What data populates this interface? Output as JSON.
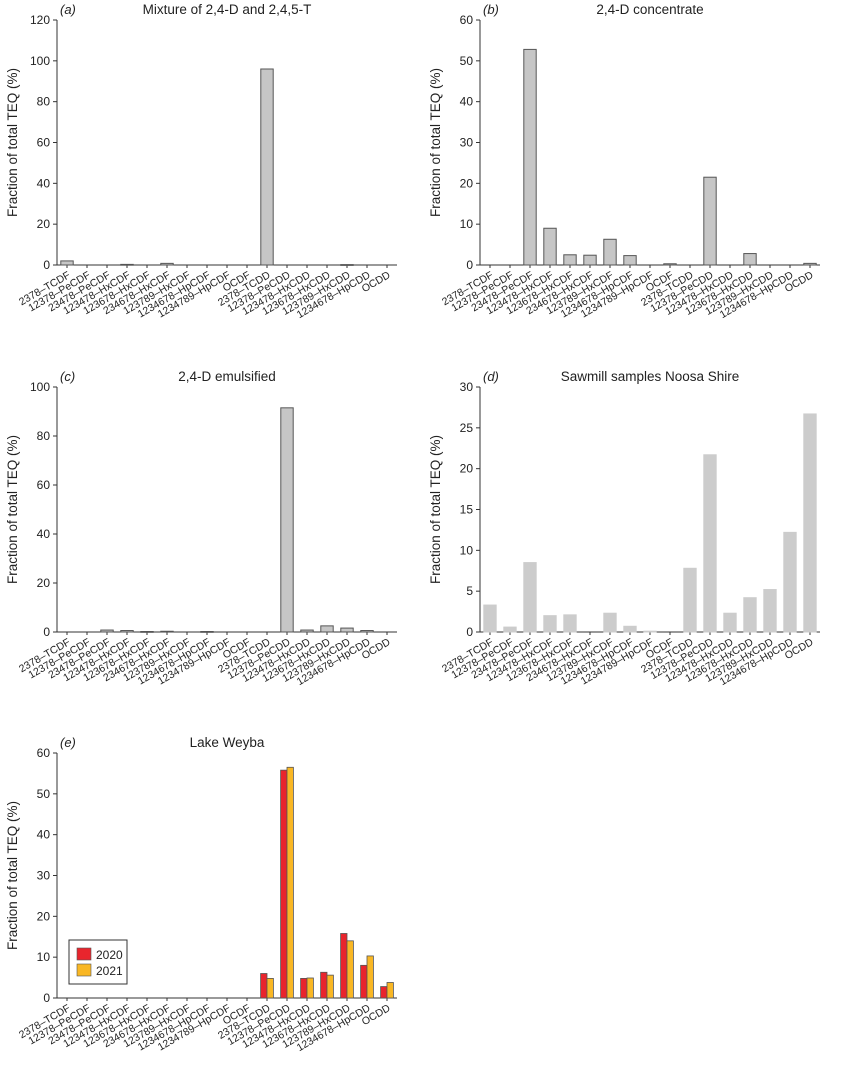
{
  "chart_data": [
    {
      "panel": "(a)",
      "type": "bar",
      "title": "Mixture of 2,4-D and 2,4,5-T",
      "ylabel": "Fraction of total TEQ (%)",
      "ylim": [
        0,
        120
      ],
      "yticks": [
        "0",
        "20",
        "40",
        "60",
        "80",
        "100",
        "120"
      ],
      "categories": [
        "2378–TCDF",
        "12378–PeCDF",
        "23478–PeCDF",
        "123478–HxCDF",
        "123678–HxCDF",
        "234678–HxCDF",
        "123789–HxCDF",
        "1234678–HpCDF",
        "1234789–HpCDF",
        "OCDF",
        "2378–TCDD",
        "12378–PeCDD",
        "123478–HxCDD",
        "123678–HxCDD",
        "123789–HxCDD",
        "1234678–HpCDD",
        "OCDD"
      ],
      "values": [
        2.0,
        0,
        0,
        0.3,
        0,
        0.8,
        0,
        0,
        0,
        0,
        96.0,
        0,
        0,
        0,
        0.2,
        0,
        0
      ],
      "color": "#c6c6c6",
      "edge": "#555555"
    },
    {
      "panel": "(b)",
      "type": "bar",
      "title": "2,4-D concentrate",
      "ylabel": "Fraction of total TEQ (%)",
      "ylim": [
        0,
        60
      ],
      "yticks": [
        "0",
        "10",
        "20",
        "30",
        "40",
        "50",
        "60"
      ],
      "categories": [
        "2378–TCDF",
        "12378–PeCDF",
        "23478–PeCDF",
        "123478–HxCDF",
        "123678–HxCDF",
        "234678–HxCDF",
        "123789–HxCDF",
        "1234678–HpCDF",
        "1234789–HpCDF",
        "OCDF",
        "2378–TCDD",
        "12378–PeCDD",
        "123478–HxCDD",
        "123678–HxCDD",
        "123789–HxCDD",
        "1234678–HpCDD",
        "OCDD"
      ],
      "values": [
        0,
        0,
        52.8,
        9.0,
        2.5,
        2.4,
        6.3,
        2.3,
        0,
        0.3,
        0,
        21.5,
        0,
        2.8,
        0,
        0,
        0.4
      ],
      "color": "#c6c6c6",
      "edge": "#555555"
    },
    {
      "panel": "(c)",
      "type": "bar",
      "title": "2,4-D emulsified",
      "ylabel": "Fraction of total TEQ (%)",
      "ylim": [
        0,
        100
      ],
      "yticks": [
        "0",
        "20",
        "40",
        "60",
        "80",
        "100"
      ],
      "categories": [
        "2378–TCDF",
        "12378–PeCDF",
        "23478–PeCDF",
        "123478–HxCDF",
        "123678–HxCDF",
        "234678–HxCDF",
        "123789–HxCDF",
        "1234678–HpCDF",
        "1234789–HpCDF",
        "OCDF",
        "2378–TCDD",
        "12378–PeCDD",
        "123478–HxCDD",
        "123678–HxCDD",
        "123789–HxCDD",
        "1234678–HpCDD",
        "OCDD"
      ],
      "values": [
        0,
        0,
        0.8,
        0.6,
        0.2,
        0.3,
        0,
        0.2,
        0,
        0,
        0,
        91.5,
        0.8,
        2.5,
        1.6,
        0.6,
        0
      ],
      "color": "#c6c6c6",
      "edge": "#555555"
    },
    {
      "panel": "(d)",
      "type": "bar",
      "title": "Sawmill samples Noosa Shire",
      "ylabel": "Fraction of total TEQ (%)",
      "ylim": [
        0,
        30
      ],
      "yticks": [
        "0",
        "5",
        "10",
        "15",
        "20",
        "25",
        "30"
      ],
      "categories": [
        "2378–TCDF",
        "12378–PeCDF",
        "23478–PeCDF",
        "123478–HxCDF",
        "123678–HxCDF",
        "234678–HxCDF",
        "123789–HxCDF",
        "1234678–HpCDF",
        "1234789–HpCDF",
        "OCDF",
        "2378–TCDD",
        "12378–PeCDD",
        "123478–HxCDD",
        "123678–HxCDD",
        "123789–HxCDD",
        "1234678–HpCDD",
        "OCDD"
      ],
      "values": [
        3.3,
        0.6,
        8.5,
        2.0,
        2.1,
        0,
        2.3,
        0.7,
        0.1,
        0,
        7.8,
        21.7,
        2.3,
        4.2,
        5.2,
        12.2,
        26.7
      ],
      "color": "#cccccc",
      "edge": "#cccccc"
    },
    {
      "panel": "(e)",
      "type": "bar",
      "title": "Lake Weyba",
      "ylabel": "Fraction of total TEQ (%)",
      "ylim": [
        0,
        60
      ],
      "yticks": [
        "0",
        "10",
        "20",
        "30",
        "40",
        "50",
        "60"
      ],
      "categories": [
        "2378–TCDF",
        "12378–PeCDF",
        "23478–PeCDF",
        "123478–HxCDF",
        "123678–HxCDF",
        "234678–HxCDF",
        "123789–HxCDF",
        "1234678–HpCDF",
        "1234789–HpCDF",
        "OCDF",
        "2378–TCDD",
        "12378–PeCDD",
        "123478–HxCDD",
        "123678–HxCDD",
        "123789–HxCDD",
        "1234678–HpCDD",
        "OCDD"
      ],
      "series": [
        {
          "name": "2020",
          "color": "#e8252d",
          "values": [
            0,
            0,
            0,
            0,
            0,
            0,
            0,
            0,
            0,
            0,
            6.0,
            55.8,
            4.8,
            6.3,
            15.8,
            8.0,
            2.8
          ]
        },
        {
          "name": "2021",
          "color": "#f9b724",
          "values": [
            0,
            0,
            0,
            0,
            0,
            0,
            0,
            0,
            0,
            0,
            4.8,
            56.5,
            4.9,
            5.6,
            14.0,
            10.3,
            3.8
          ]
        }
      ],
      "legend": "bottom-left",
      "edge": "#555555"
    }
  ]
}
